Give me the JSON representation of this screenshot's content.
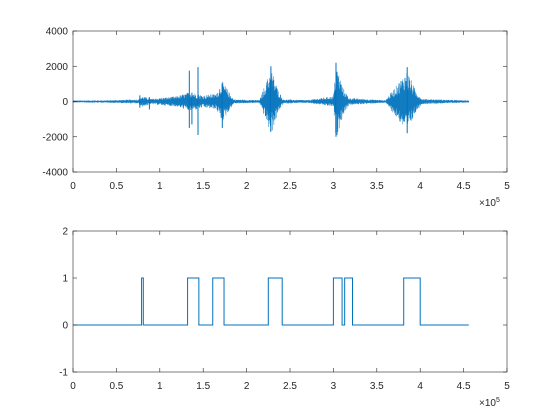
{
  "chart_data": [
    {
      "type": "line",
      "title": "",
      "xlabel": "",
      "ylabel": "",
      "xlim": [
        0,
        500000
      ],
      "ylim": [
        -4000,
        4000
      ],
      "x_ticks": [
        0,
        50000,
        100000,
        150000,
        200000,
        250000,
        300000,
        350000,
        400000,
        450000,
        500000
      ],
      "x_tick_labels": [
        "0",
        "0.5",
        "1",
        "1.5",
        "2",
        "2.5",
        "3",
        "3.5",
        "4",
        "4.5",
        "5"
      ],
      "y_ticks": [
        -4000,
        -2000,
        0,
        2000,
        4000
      ],
      "y_tick_labels": [
        "-4000",
        "-2000",
        "0",
        "2000",
        "4000"
      ],
      "x_exponent": {
        "base": "×10",
        "power": "5"
      },
      "grid": false,
      "color": "#0072BD",
      "signal_extent": [
        0,
        456000
      ],
      "envelope": [
        {
          "x": 0,
          "amp": 60
        },
        {
          "x": 40000,
          "amp": 70
        },
        {
          "x": 75000,
          "amp": 120
        },
        {
          "x": 80000,
          "amp": 300
        },
        {
          "x": 90000,
          "amp": 150
        },
        {
          "x": 100000,
          "amp": 200
        },
        {
          "x": 120000,
          "amp": 300
        },
        {
          "x": 135000,
          "amp": 550
        },
        {
          "x": 150000,
          "amp": 350
        },
        {
          "x": 165000,
          "amp": 450
        },
        {
          "x": 172000,
          "amp": 1150
        },
        {
          "x": 185000,
          "amp": 120
        },
        {
          "x": 215000,
          "amp": 80
        },
        {
          "x": 228000,
          "amp": 1900
        },
        {
          "x": 236000,
          "amp": 700
        },
        {
          "x": 242000,
          "amp": 120
        },
        {
          "x": 270000,
          "amp": 80
        },
        {
          "x": 300000,
          "amp": 300
        },
        {
          "x": 303000,
          "amp": 2150
        },
        {
          "x": 311000,
          "amp": 800
        },
        {
          "x": 318000,
          "amp": 200
        },
        {
          "x": 360000,
          "amp": 70
        },
        {
          "x": 385000,
          "amp": 1750
        },
        {
          "x": 395000,
          "amp": 600
        },
        {
          "x": 402000,
          "amp": 150
        },
        {
          "x": 456000,
          "amp": 60
        }
      ],
      "spikes": [
        {
          "x": 77000,
          "min": -350,
          "max": 350
        },
        {
          "x": 88000,
          "min": -450,
          "max": 250
        },
        {
          "x": 134000,
          "min": -1500,
          "max": 1750
        },
        {
          "x": 137000,
          "min": -1300,
          "max": 500
        },
        {
          "x": 144000,
          "min": -1900,
          "max": 1950
        },
        {
          "x": 172000,
          "min": -1500,
          "max": 1000
        },
        {
          "x": 228000,
          "min": -1700,
          "max": 2000
        },
        {
          "x": 303000,
          "min": -2000,
          "max": 2200
        },
        {
          "x": 385000,
          "min": -1800,
          "max": 1950
        }
      ]
    },
    {
      "type": "line",
      "title": "",
      "xlabel": "",
      "ylabel": "",
      "xlim": [
        0,
        500000
      ],
      "ylim": [
        -1,
        2
      ],
      "x_ticks": [
        0,
        50000,
        100000,
        150000,
        200000,
        250000,
        300000,
        350000,
        400000,
        450000,
        500000
      ],
      "x_tick_labels": [
        "0",
        "0.5",
        "1",
        "1.5",
        "2",
        "2.5",
        "3",
        "3.5",
        "4",
        "4.5",
        "5"
      ],
      "y_ticks": [
        -1,
        0,
        1,
        2
      ],
      "y_tick_labels": [
        "-1",
        "0",
        "1",
        "2"
      ],
      "x_exponent": {
        "base": "×10",
        "power": "5"
      },
      "grid": false,
      "color": "#0072BD",
      "x": [
        0,
        79000,
        79000,
        81000,
        81000,
        132000,
        132000,
        145000,
        145000,
        161000,
        161000,
        174000,
        174000,
        225000,
        225000,
        241000,
        241000,
        300000,
        300000,
        310000,
        310000,
        313000,
        313000,
        322000,
        322000,
        381000,
        381000,
        400000,
        400000,
        456000
      ],
      "y": [
        0,
        0,
        1,
        1,
        0,
        0,
        1,
        1,
        0,
        0,
        1,
        1,
        0,
        0,
        1,
        1,
        0,
        0,
        1,
        1,
        0,
        0,
        1,
        1,
        0,
        0,
        1,
        1,
        0,
        0
      ]
    }
  ]
}
